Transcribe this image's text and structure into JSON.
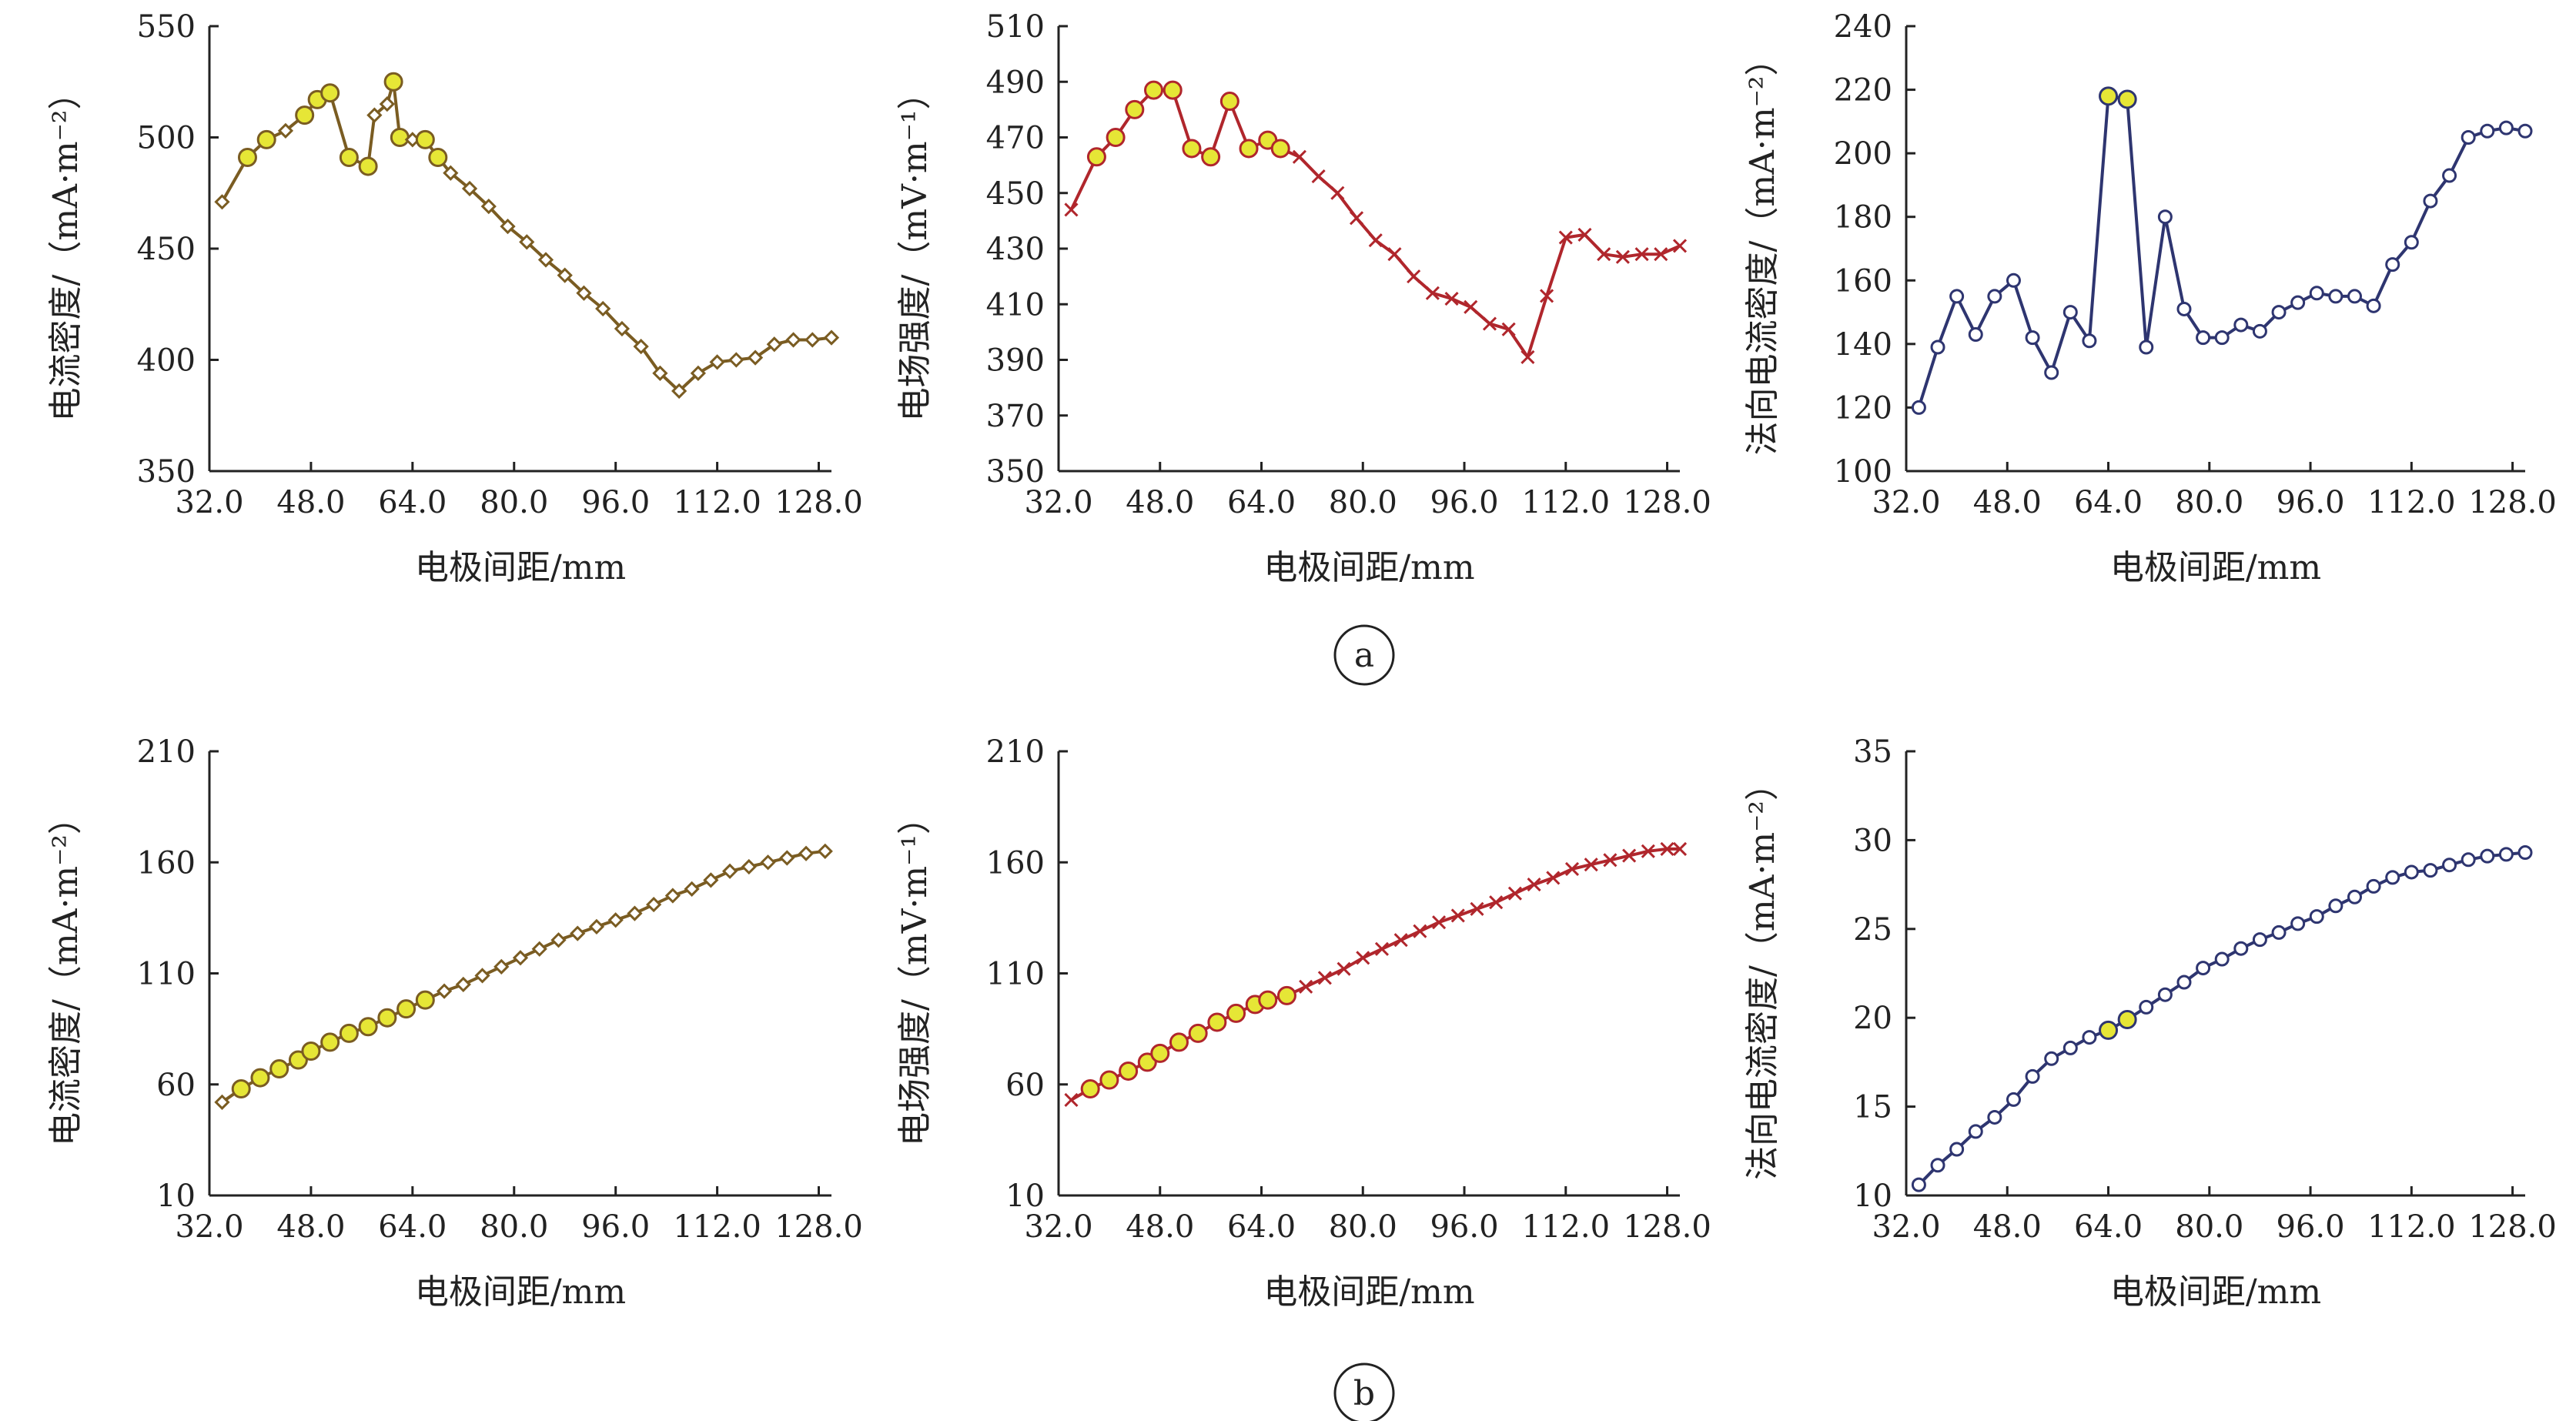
{
  "colors": {
    "brown": "#7A5C22",
    "red": "#B0262C",
    "navy": "#2E3570",
    "highlight_fill": "#E6E636",
    "axis": "#222222"
  },
  "panel_labels": {
    "a": "a",
    "b": "b"
  },
  "chart_data": [
    {
      "id": "a1",
      "type": "line",
      "row": "a",
      "col": 0,
      "marker": "diamond",
      "color": "brown",
      "xlabel": "电极间距/mm",
      "ylabel": "电流密度/（mA·m⁻²）",
      "xlim": [
        32,
        130
      ],
      "xticks": [
        "32.0",
        "48.0",
        "64.0",
        "80.0",
        "96.0",
        "112.0",
        "128.0"
      ],
      "ylim": [
        350,
        550
      ],
      "yticks": [
        "350",
        "400",
        "450",
        "500",
        "550"
      ],
      "grid": false,
      "legend": "none",
      "x": [
        34,
        38,
        41,
        44,
        47,
        49,
        51,
        54,
        57,
        58,
        60,
        61,
        62,
        64,
        66,
        68,
        70,
        73,
        76,
        79,
        82,
        85,
        88,
        91,
        94,
        97,
        100,
        103,
        106,
        109,
        112,
        115,
        118,
        121,
        124,
        127,
        130
      ],
      "y": [
        471,
        491,
        499,
        503,
        510,
        517,
        520,
        491,
        487,
        510,
        515,
        525,
        500,
        499,
        499,
        491,
        484,
        477,
        469,
        460,
        453,
        445,
        438,
        430,
        423,
        414,
        406,
        394,
        386,
        394,
        399,
        400,
        401,
        407,
        409,
        409,
        410
      ],
      "highlight": [
        1,
        2,
        4,
        5,
        6,
        7,
        8,
        11,
        12,
        14,
        15
      ]
    },
    {
      "id": "a2",
      "type": "line",
      "row": "a",
      "col": 1,
      "marker": "x",
      "color": "red",
      "xlabel": "电极间距/mm",
      "ylabel": "电场强度/（mV·m⁻¹）",
      "xlim": [
        32,
        130
      ],
      "xticks": [
        "32.0",
        "48.0",
        "64.0",
        "80.0",
        "96.0",
        "112.0",
        "128.0"
      ],
      "ylim": [
        350,
        510
      ],
      "yticks": [
        "350",
        "370",
        "390",
        "410",
        "430",
        "450",
        "470",
        "490",
        "510"
      ],
      "grid": false,
      "legend": "none",
      "x": [
        34,
        38,
        41,
        44,
        47,
        50,
        53,
        56,
        59,
        62,
        65,
        67,
        70,
        73,
        76,
        79,
        82,
        85,
        88,
        91,
        94,
        97,
        100,
        103,
        106,
        109,
        112,
        115,
        118,
        121,
        124,
        127,
        130
      ],
      "y": [
        444,
        463,
        470,
        480,
        487,
        487,
        466,
        463,
        483,
        466,
        469,
        466,
        463,
        456,
        450,
        441,
        433,
        428,
        420,
        414,
        412,
        409,
        403,
        401,
        391,
        413,
        434,
        435,
        428,
        427,
        428,
        428,
        431
      ],
      "highlight": [
        1,
        2,
        3,
        4,
        5,
        6,
        7,
        8,
        9,
        10,
        11
      ]
    },
    {
      "id": "a3",
      "type": "line",
      "row": "a",
      "col": 2,
      "marker": "circle",
      "color": "navy",
      "xlabel": "电极间距/mm",
      "ylabel": "法向电流密度/（mA·m⁻²）",
      "xlim": [
        32,
        130
      ],
      "xticks": [
        "32.0",
        "48.0",
        "64.0",
        "80.0",
        "96.0",
        "112.0",
        "128.0"
      ],
      "ylim": [
        100,
        240
      ],
      "yticks": [
        "100",
        "120",
        "140",
        "160",
        "180",
        "200",
        "220",
        "240"
      ],
      "grid": false,
      "legend": "none",
      "x": [
        34,
        37,
        40,
        43,
        46,
        49,
        52,
        55,
        58,
        61,
        64,
        67,
        70,
        73,
        76,
        79,
        82,
        85,
        88,
        91,
        94,
        97,
        100,
        103,
        106,
        109,
        112,
        115,
        118,
        121,
        124,
        127,
        130
      ],
      "y": [
        120,
        139,
        155,
        143,
        155,
        160,
        142,
        131,
        150,
        141,
        218,
        217,
        139,
        180,
        151,
        142,
        142,
        146,
        144,
        150,
        153,
        156,
        155,
        155,
        152,
        165,
        172,
        185,
        193,
        205,
        207,
        208,
        207
      ],
      "highlight": [
        10,
        11
      ]
    },
    {
      "id": "b1",
      "type": "line",
      "row": "b",
      "col": 0,
      "marker": "diamond",
      "color": "brown",
      "xlabel": "电极间距/mm",
      "ylabel": "电流密度/（mA·m⁻²）",
      "xlim": [
        32,
        130
      ],
      "xticks": [
        "32.0",
        "48.0",
        "64.0",
        "80.0",
        "96.0",
        "112.0",
        "128.0"
      ],
      "ylim": [
        10,
        210
      ],
      "yticks": [
        "10",
        "60",
        "110",
        "160",
        "210"
      ],
      "grid": false,
      "legend": "none",
      "x": [
        34,
        37,
        40,
        43,
        46,
        48,
        51,
        54,
        57,
        60,
        63,
        66,
        69,
        72,
        75,
        78,
        81,
        84,
        87,
        90,
        93,
        96,
        99,
        102,
        105,
        108,
        111,
        114,
        117,
        120,
        123,
        126,
        129
      ],
      "y": [
        52,
        58,
        63,
        67,
        71,
        75,
        79,
        83,
        86,
        90,
        94,
        98,
        102,
        105,
        109,
        113,
        117,
        121,
        125,
        128,
        131,
        134,
        137,
        141,
        145,
        148,
        152,
        156,
        158,
        160,
        162,
        164,
        165
      ],
      "highlight": [
        1,
        2,
        3,
        4,
        5,
        6,
        7,
        8,
        9,
        10,
        11
      ]
    },
    {
      "id": "b2",
      "type": "line",
      "row": "b",
      "col": 1,
      "marker": "x",
      "color": "red",
      "xlabel": "电极间距/mm",
      "ylabel": "电场强度/（mV·m⁻¹）",
      "xlim": [
        32,
        130
      ],
      "xticks": [
        "32.0",
        "48.0",
        "64.0",
        "80.0",
        "96.0",
        "112.0",
        "128.0"
      ],
      "ylim": [
        10,
        210
      ],
      "yticks": [
        "10",
        "60",
        "110",
        "160",
        "210"
      ],
      "grid": false,
      "legend": "none",
      "x": [
        34,
        37,
        40,
        43,
        46,
        48,
        51,
        54,
        57,
        60,
        63,
        65,
        68,
        71,
        74,
        77,
        80,
        83,
        86,
        89,
        92,
        95,
        98,
        101,
        104,
        107,
        110,
        113,
        116,
        119,
        122,
        125,
        128,
        130
      ],
      "y": [
        53,
        58,
        62,
        66,
        70,
        74,
        79,
        83,
        88,
        92,
        96,
        98,
        100,
        104,
        108,
        112,
        117,
        121,
        125,
        129,
        133,
        136,
        139,
        142,
        146,
        150,
        153,
        157,
        159,
        161,
        163,
        165,
        166,
        166
      ],
      "highlight": [
        1,
        2,
        3,
        4,
        5,
        6,
        7,
        8,
        9,
        10,
        11,
        12
      ]
    },
    {
      "id": "b3",
      "type": "line",
      "row": "b",
      "col": 2,
      "marker": "circle",
      "color": "navy",
      "xlabel": "电极间距/mm",
      "ylabel": "法向电流密度/（mA·m⁻²）",
      "xlim": [
        32,
        130
      ],
      "xticks": [
        "32.0",
        "48.0",
        "64.0",
        "80.0",
        "96.0",
        "112.0",
        "128.0"
      ],
      "ylim": [
        10,
        35
      ],
      "yticks": [
        "10",
        "15",
        "20",
        "25",
        "30",
        "35"
      ],
      "grid": false,
      "legend": "none",
      "x": [
        34,
        37,
        40,
        43,
        46,
        49,
        52,
        55,
        58,
        61,
        64,
        67,
        70,
        73,
        76,
        79,
        82,
        85,
        88,
        91,
        94,
        97,
        100,
        103,
        106,
        109,
        112,
        115,
        118,
        121,
        124,
        127,
        130
      ],
      "y": [
        10.6,
        11.7,
        12.6,
        13.6,
        14.4,
        15.4,
        16.7,
        17.7,
        18.3,
        18.9,
        19.3,
        19.9,
        20.6,
        21.3,
        22.0,
        22.8,
        23.3,
        23.9,
        24.4,
        24.8,
        25.3,
        25.7,
        26.3,
        26.8,
        27.4,
        27.9,
        28.2,
        28.3,
        28.6,
        28.9,
        29.1,
        29.2,
        29.3
      ],
      "highlight": [
        10,
        11
      ]
    }
  ]
}
